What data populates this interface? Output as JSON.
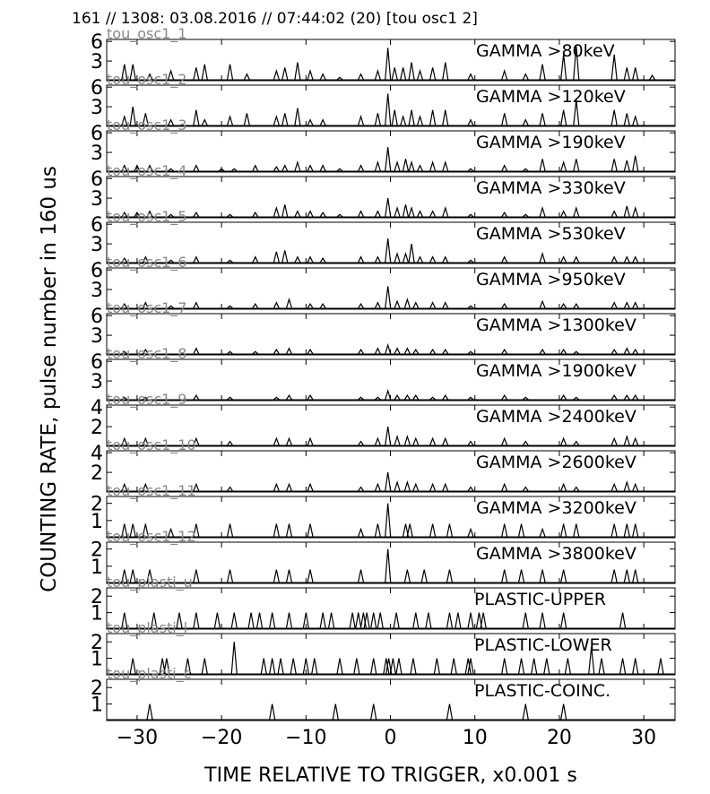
{
  "header": "161 // 1308:   03.08.2016 // 07:44:02 (20)  [tou osc1 2]",
  "ylabel": "COUNTING RATE,    pulse number in 160 us",
  "xlabel": "TIME RELATIVE TO TRIGGER,   x0.001 s",
  "xlim": [
    -33.6,
    33.7
  ],
  "xticks": [
    {
      "value": -30,
      "label": "−30"
    },
    {
      "value": -20,
      "label": "−20"
    },
    {
      "value": -10,
      "label": "−10"
    },
    0,
    10,
    20,
    30
  ],
  "chart_data": [
    {
      "type": "spike",
      "channel": "tou_osc1_1",
      "title": "GAMMA >80keV",
      "ylim": [
        0,
        6.3
      ],
      "yticks": [
        3,
        6
      ],
      "x": [
        -31.5,
        -30.5,
        -28.5,
        -26,
        -23,
        -22,
        -19,
        -17,
        -13.5,
        -12.5,
        -11,
        -9.5,
        -8,
        -6,
        -3.5,
        -1.5,
        -0.3,
        0.5,
        1.5,
        2.5,
        3.5,
        5,
        6.5,
        9.5,
        13.5,
        16,
        18,
        20.5,
        22,
        26.5,
        28,
        29,
        31
      ],
      "values": [
        2.5,
        2.5,
        1,
        1.5,
        2,
        2.5,
        2.5,
        1,
        1.5,
        2,
        2.8,
        1.5,
        1,
        0.5,
        1,
        1.5,
        5,
        2,
        2,
        2.8,
        1.5,
        2,
        2.8,
        1,
        1.5,
        1,
        2.5,
        4,
        5.3,
        4,
        2,
        2,
        0.8
      ]
    },
    {
      "type": "spike",
      "channel": "tou_osc1_2",
      "title": "GAMMA >120keV",
      "ylim": [
        0,
        6.3
      ],
      "yticks": [
        3,
        6
      ],
      "x": [
        -31.5,
        -30.5,
        -29,
        -26,
        -23,
        -22,
        -19,
        -17,
        -13.5,
        -12.5,
        -11,
        -9.5,
        -8,
        -3.5,
        -1.5,
        -0.3,
        0.5,
        1.5,
        2.5,
        3.5,
        5,
        6.5,
        9.5,
        13.5,
        16,
        18,
        20.5,
        22,
        26.5,
        28,
        29
      ],
      "values": [
        1.5,
        3,
        2,
        1,
        2.5,
        1,
        1.5,
        2,
        1.5,
        2,
        2.8,
        1,
        1,
        1.5,
        2,
        5,
        2.5,
        1.5,
        2.5,
        1.5,
        2.5,
        2.5,
        1,
        2,
        1,
        2,
        2.5,
        4,
        2.5,
        2,
        1.5
      ]
    },
    {
      "type": "spike",
      "channel": "tou_osc1_3",
      "title": "GAMMA >190keV",
      "ylim": [
        0,
        6.3
      ],
      "yticks": [
        3,
        6
      ],
      "x": [
        -31.5,
        -30,
        -28.5,
        -26,
        -23,
        -20,
        -18.5,
        -16,
        -13.5,
        -12.5,
        -11,
        -9.5,
        -8,
        -6,
        -3.5,
        -1.5,
        -0.3,
        0.8,
        1.8,
        2.5,
        3.5,
        5,
        6.5,
        9.5,
        13.5,
        16,
        18,
        20.5,
        22,
        26.5,
        28,
        29
      ],
      "values": [
        1,
        1,
        1,
        0.5,
        1,
        0.5,
        0.5,
        1,
        0.8,
        1,
        1.5,
        1,
        1,
        0.5,
        1,
        1.5,
        3.8,
        1.5,
        2,
        1.5,
        1,
        1.5,
        1.5,
        0.5,
        1,
        0.5,
        2,
        1.5,
        2,
        2,
        1.8,
        2.5
      ]
    },
    {
      "type": "spike",
      "channel": "tou_osc1_4",
      "title": "GAMMA >330keV",
      "ylim": [
        0,
        6.3
      ],
      "yticks": [
        3,
        6
      ],
      "x": [
        -31.5,
        -30,
        -28.5,
        -26,
        -23,
        -19,
        -16,
        -13.5,
        -12.5,
        -11,
        -9.5,
        -8,
        -6,
        -3.5,
        -1.5,
        -0.3,
        0.8,
        1.8,
        2.5,
        3.5,
        5,
        6.5,
        9.5,
        13.5,
        16,
        18,
        20.5,
        22,
        26.5,
        28,
        29
      ],
      "values": [
        0.8,
        0.8,
        1,
        0.5,
        0.8,
        0.5,
        0.8,
        1.5,
        2,
        1,
        1,
        0.8,
        0.5,
        1,
        1,
        3,
        1.5,
        2,
        1.5,
        1,
        1,
        1.5,
        0.5,
        0.8,
        0.5,
        1.5,
        1,
        1.5,
        1,
        1.8,
        1.5
      ]
    },
    {
      "type": "spike",
      "channel": "tou_osc1_5",
      "title": "GAMMA >530keV",
      "ylim": [
        0,
        6.3
      ],
      "yticks": [
        3,
        6
      ],
      "x": [
        -31.5,
        -29,
        -26,
        -23,
        -19,
        -16,
        -13.5,
        -12.5,
        -11,
        -9.5,
        -8,
        -3.5,
        -1.5,
        -0.3,
        0.8,
        1.8,
        2.5,
        3.5,
        5,
        6.5,
        9.5,
        13.5,
        18,
        20.5,
        22,
        26.5,
        28,
        29
      ],
      "values": [
        0.8,
        1,
        0.5,
        1,
        0.5,
        1,
        1.8,
        2,
        1,
        1,
        0.8,
        1,
        1,
        3.8,
        1.5,
        1.5,
        3,
        1,
        1,
        1,
        0.5,
        1,
        1.5,
        1,
        1,
        1,
        1,
        1
      ]
    },
    {
      "type": "spike",
      "channel": "tou_osc1_6",
      "title": "GAMMA >950keV",
      "ylim": [
        0,
        6.3
      ],
      "yticks": [
        3,
        6
      ],
      "x": [
        -31.5,
        -29,
        -26,
        -23,
        -19,
        -16,
        -13.5,
        -12,
        -9.5,
        -8,
        -3.5,
        -1.5,
        -0.3,
        0.8,
        2,
        3,
        5,
        6.5,
        9.5,
        13.5,
        18,
        20.5,
        22,
        26.5,
        28,
        29
      ],
      "values": [
        0.8,
        1,
        0.5,
        1,
        0.5,
        0.8,
        1,
        1.5,
        0.8,
        0.8,
        0.8,
        1,
        3.5,
        1.2,
        1.5,
        1,
        1,
        1,
        0.5,
        0.8,
        1.2,
        0.8,
        0.8,
        1,
        1,
        1
      ]
    },
    {
      "type": "spike",
      "channel": "tou_osc1_7",
      "title": "GAMMA >1300keV",
      "ylim": [
        0,
        6.3
      ],
      "yticks": [
        3,
        6
      ],
      "x": [
        -31.5,
        -29,
        -23,
        -19,
        -16,
        -13.5,
        -12,
        -9.5,
        -3.5,
        -1.5,
        -0.3,
        0.8,
        2,
        3,
        5,
        6.5,
        9.5,
        13.5,
        18,
        20.5,
        22,
        26.5,
        28,
        29
      ],
      "values": [
        0.5,
        0.8,
        1,
        0.5,
        0.5,
        0.8,
        1,
        0.8,
        0.8,
        1,
        1.5,
        1,
        1,
        0.8,
        0.8,
        0.8,
        0.5,
        0.8,
        0.8,
        0.8,
        0.5,
        0.8,
        1,
        0.8
      ]
    },
    {
      "type": "spike",
      "channel": "tou_osc1_8",
      "title": "GAMMA >1900keV",
      "ylim": [
        0,
        6.3
      ],
      "yticks": [
        3,
        6
      ],
      "x": [
        -31.5,
        -29,
        -23,
        -19,
        -13.5,
        -12,
        -9.5,
        -3.5,
        -1.5,
        -0.3,
        0.8,
        2,
        3,
        5,
        6.5,
        9.5,
        13.5,
        16,
        20.5,
        22,
        26.5,
        28,
        29
      ],
      "values": [
        0.5,
        0.5,
        0.8,
        0.5,
        0.5,
        0.8,
        0.8,
        0.5,
        0.5,
        1.5,
        0.8,
        0.8,
        0.8,
        0.5,
        0.8,
        0.5,
        0.8,
        0.5,
        0.8,
        0.5,
        0.8,
        0.8,
        0.8
      ]
    },
    {
      "type": "spike",
      "channel": "tou_osc1_9",
      "title": "GAMMA >2400keV",
      "ylim": [
        0,
        4.2
      ],
      "yticks": [
        2,
        4
      ],
      "x": [
        -31.5,
        -29,
        -23,
        -19,
        -13.5,
        -12,
        -9.5,
        -3.5,
        -1.5,
        -0.3,
        0.8,
        2,
        3,
        5,
        6.5,
        9.5,
        13.5,
        16,
        20.5,
        22,
        26.5,
        28,
        29
      ],
      "values": [
        0.8,
        0.8,
        0.8,
        0.5,
        0.8,
        0.8,
        0.8,
        0.5,
        0.8,
        2,
        1,
        1,
        0.8,
        0.8,
        0.8,
        0.5,
        0.8,
        0.5,
        0.8,
        0.5,
        0.8,
        1,
        0.8
      ]
    },
    {
      "type": "spike",
      "channel": "tou_osc1_10",
      "title": "GAMMA >2600keV",
      "ylim": [
        0,
        4.2
      ],
      "yticks": [
        2,
        4
      ],
      "x": [
        -31.5,
        -29,
        -23,
        -19,
        -13.5,
        -12,
        -9.5,
        -3.5,
        -1.5,
        -0.3,
        0.8,
        2,
        3,
        5,
        6.5,
        9.5,
        13.5,
        16,
        20.5,
        22,
        26.5,
        28,
        29
      ],
      "values": [
        0.8,
        0.8,
        0.8,
        0.5,
        0.8,
        0.8,
        0.8,
        0.5,
        0.8,
        2,
        1,
        1,
        0.8,
        0.8,
        0.8,
        0.5,
        0.8,
        0.5,
        0.8,
        0.5,
        0.8,
        1,
        0.8
      ]
    },
    {
      "type": "spike",
      "channel": "tou_osc1_11",
      "title": "GAMMA >3200keV",
      "ylim": [
        0,
        2.4
      ],
      "yticks": [
        1,
        2
      ],
      "x": [
        -31.5,
        -30.5,
        -29,
        -26,
        -23,
        -19,
        -13.5,
        -12,
        -9.5,
        -3.5,
        -1.5,
        -0.3,
        1.8,
        2.3,
        5,
        7,
        9.5,
        13.5,
        15.5,
        18,
        20.5,
        22,
        26.5,
        28,
        29
      ],
      "values": [
        0.8,
        0.8,
        0.8,
        0.5,
        0.8,
        0.8,
        0.8,
        0.8,
        0.8,
        0.5,
        0.8,
        2,
        0.8,
        0.8,
        0.8,
        0.8,
        0.5,
        0.8,
        0.8,
        0.5,
        0.8,
        0.8,
        0.8,
        0.8,
        0.8
      ]
    },
    {
      "type": "spike",
      "channel": "tou_osc1_12",
      "title": "GAMMA >3800keV",
      "ylim": [
        0,
        2.4
      ],
      "yticks": [
        1,
        2
      ],
      "x": [
        -31.5,
        -30.5,
        -28.5,
        -23,
        -19,
        -13.5,
        -12,
        -9.5,
        -3.5,
        -0.3,
        2,
        4,
        7,
        13.5,
        15.5,
        18,
        20.5,
        26.5,
        28,
        29
      ],
      "values": [
        0.8,
        0.8,
        0.8,
        0.8,
        0.8,
        0.8,
        0.8,
        0.8,
        0.8,
        2,
        0.8,
        0.8,
        0.8,
        0.8,
        0.8,
        0.8,
        0.8,
        0.8,
        0.8,
        0.8
      ]
    },
    {
      "type": "spike",
      "channel": "tou_plasti_u",
      "title": "PLASTIC-UPPER",
      "ylim": [
        0,
        2.5
      ],
      "yticks": [
        1,
        2
      ],
      "x": [
        -31.5,
        -28,
        -25,
        -23,
        -20.5,
        -18.5,
        -16.5,
        -15.5,
        -14,
        -12,
        -10,
        -8,
        -7,
        -4.5,
        -3.8,
        -3.2,
        -2.8,
        -2,
        -1.2,
        0.7,
        3,
        4.5,
        7,
        8,
        9.5,
        10.5,
        11,
        16,
        18,
        20.5,
        27.5
      ],
      "values": [
        1,
        1,
        1,
        1,
        1,
        1,
        1,
        1,
        1,
        1,
        1,
        1,
        1,
        1,
        1,
        1,
        1,
        1,
        1,
        1,
        1,
        1,
        1,
        1,
        1,
        1,
        1,
        1,
        1,
        1,
        1
      ]
    },
    {
      "type": "spike",
      "channel": "tou_plasti_l",
      "title": "PLASTIC-LOWER",
      "ylim": [
        0,
        2.5
      ],
      "yticks": [
        1,
        2
      ],
      "x": [
        -30.5,
        -27,
        -26.5,
        -24,
        -22,
        -18.5,
        -15,
        -14,
        -13,
        -11.5,
        -10,
        -9,
        -6,
        -4,
        -2,
        -0.5,
        -0.2,
        0.3,
        1,
        2.7,
        5.5,
        7.5,
        9.2,
        9.5,
        13.5,
        15.5,
        17,
        18.5,
        21,
        23.8,
        25,
        27.5,
        29,
        32
      ],
      "values": [
        1,
        1,
        1,
        1,
        1,
        2,
        1,
        1,
        1,
        1,
        1,
        1,
        1,
        1,
        1,
        1,
        1,
        1,
        1,
        1,
        1,
        1,
        1,
        1,
        1,
        1,
        1,
        1,
        1,
        1.7,
        1,
        1,
        1,
        1
      ]
    },
    {
      "type": "spike",
      "channel": "tou_plasti_c",
      "title": "PLASTIC-COINC.",
      "ylim": [
        0,
        2.5
      ],
      "yticks": [
        1,
        2
      ],
      "x": [
        -28.5,
        -14,
        -6.5,
        -2,
        7,
        16,
        20.5
      ],
      "values": [
        1,
        1,
        1,
        1,
        1,
        1,
        1
      ]
    }
  ]
}
